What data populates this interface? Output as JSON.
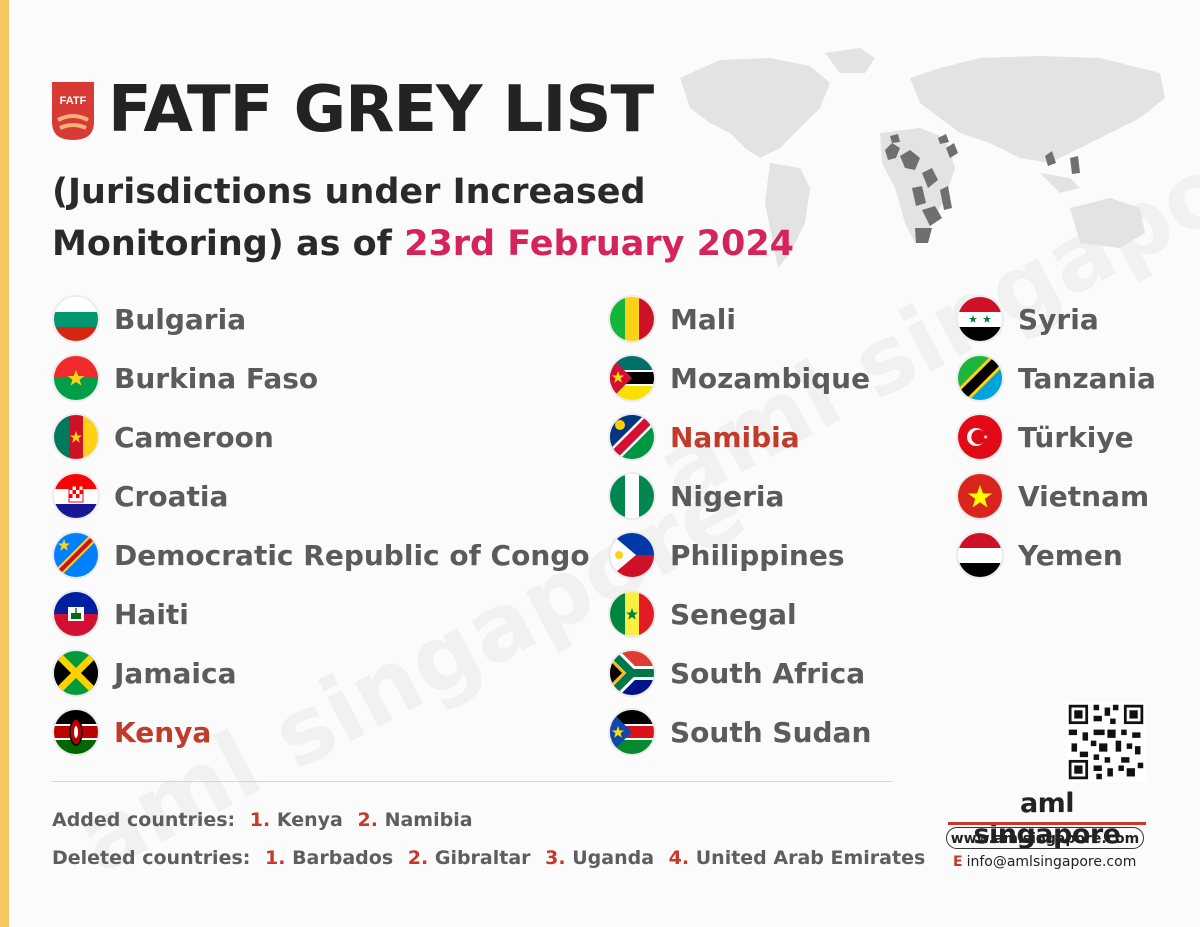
{
  "header": {
    "logo_text": "FATF",
    "title": "FATF GREY LIST",
    "subtitle_line1": "(Jurisdictions under Increased",
    "subtitle_line2_prefix": "Monitoring) as of ",
    "subtitle_date": "23rd February 2024"
  },
  "colors": {
    "accent": "#d4245a",
    "added": "#c23a2a",
    "number": "#c9382a",
    "text_grey": "#5b5b5b"
  },
  "countries": {
    "column1": [
      "Bulgaria",
      "Burkina Faso",
      "Cameroon",
      "Croatia",
      "Democratic Republic of Congo",
      "Haiti",
      "Jamaica",
      "Kenya"
    ],
    "column2": [
      "Mali",
      "Mozambique",
      "Namibia",
      "Nigeria",
      "Philippines",
      "Senegal",
      "South Africa",
      "South Sudan"
    ],
    "column3": [
      "Syria",
      "Tanzania",
      "Türkiye",
      "Vietnam",
      "Yemen"
    ]
  },
  "changes": {
    "added_label": "Added countries:",
    "added": [
      {
        "num": "1.",
        "name": "Kenya"
      },
      {
        "num": "2.",
        "name": "Namibia"
      }
    ],
    "deleted_label": "Deleted countries:",
    "deleted": [
      {
        "num": "1.",
        "name": "Barbados"
      },
      {
        "num": "2.",
        "name": "Gibraltar"
      },
      {
        "num": "3.",
        "name": "Uganda"
      },
      {
        "num": "4.",
        "name": "United Arab Emirates"
      }
    ]
  },
  "branding": {
    "watermark": "aml singapore",
    "brand_name": "aml singapore",
    "website": "www.amlsingapore.com",
    "email_label": "E",
    "email": "info@amlsingapore.com"
  }
}
